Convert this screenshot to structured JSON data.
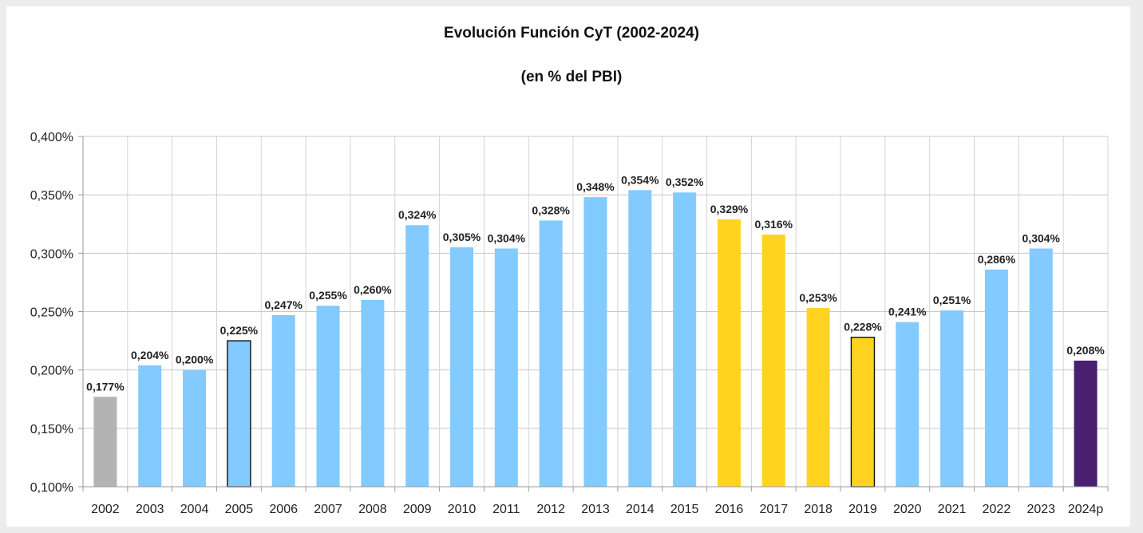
{
  "chart_data": {
    "type": "bar",
    "title": "Evolución Función CyT (2002-2024)",
    "subtitle": "(en % del PBI)",
    "xlabel": "",
    "ylabel": "",
    "ylim": [
      0.1,
      0.4
    ],
    "yticks": [
      0.1,
      0.15,
      0.2,
      0.25,
      0.3,
      0.35,
      0.4
    ],
    "ytick_labels": [
      "0,100%",
      "0,150%",
      "0,200%",
      "0,250%",
      "0,300%",
      "0,350%",
      "0,400%"
    ],
    "grid": true,
    "legend": "none",
    "categories": [
      "2002",
      "2003",
      "2004",
      "2005",
      "2006",
      "2007",
      "2008",
      "2009",
      "2010",
      "2011",
      "2012",
      "2013",
      "2014",
      "2015",
      "2016",
      "2017",
      "2018",
      "2019",
      "2020",
      "2021",
      "2022",
      "2023",
      "2024p"
    ],
    "values": [
      0.177,
      0.204,
      0.2,
      0.225,
      0.247,
      0.255,
      0.26,
      0.324,
      0.305,
      0.304,
      0.328,
      0.348,
      0.354,
      0.352,
      0.329,
      0.316,
      0.253,
      0.228,
      0.241,
      0.251,
      0.286,
      0.304,
      0.208
    ],
    "value_labels": [
      "0,177%",
      "0,204%",
      "0,200%",
      "0,225%",
      "0,247%",
      "0,255%",
      "0,260%",
      "0,324%",
      "0,305%",
      "0,304%",
      "0,328%",
      "0,348%",
      "0,354%",
      "0,352%",
      "0,329%",
      "0,316%",
      "0,253%",
      "0,228%",
      "0,241%",
      "0,251%",
      "0,286%",
      "0,304%",
      "0,208%"
    ],
    "bar_colors": [
      "#b3b3b3",
      "#83caff",
      "#83caff",
      "#83caff",
      "#83caff",
      "#83caff",
      "#83caff",
      "#83caff",
      "#83caff",
      "#83caff",
      "#83caff",
      "#83caff",
      "#83caff",
      "#83caff",
      "#ffd320",
      "#ffd320",
      "#ffd320",
      "#ffd320",
      "#83caff",
      "#83caff",
      "#83caff",
      "#83caff",
      "#4b1f6f"
    ],
    "outlined_bars": [
      "2005",
      "2019"
    ]
  }
}
